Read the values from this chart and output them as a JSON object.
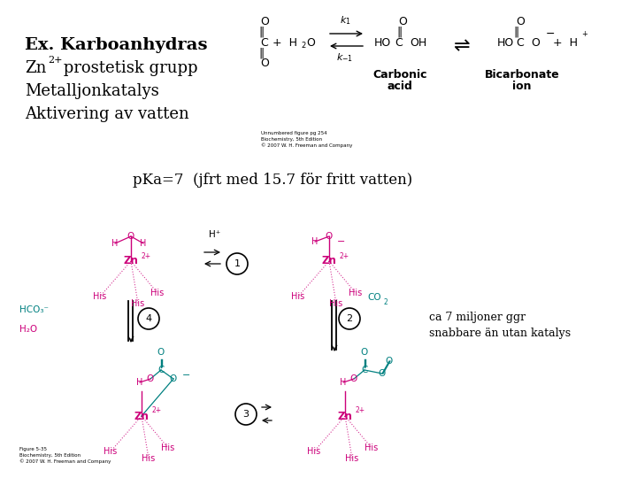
{
  "bg_color": "#ffffff",
  "black": "#000000",
  "magenta": "#cc007a",
  "blue": "#008080",
  "title1": "Ex. Karboanhydras",
  "title2_zn": "Zn",
  "title2_super": "2+",
  "title2_rest": " prostetisk grupp",
  "title3": "Metalljonkatalys",
  "title4": "Aktivering av vatten",
  "pka_text": "pKa=7  (jfrt med 15.7 för fritt vatten)",
  "note_line1": "ca 7 miljoner ggr",
  "note_line2": "snabbare än utan katalys",
  "caption_top": "Unnumbered figure pg 254\nBiochemistry, 5th Edition\n© 2007 W. H. Freeman and Company",
  "caption_bot": "Figure 5-35\nBiochemistry, 5th Edition\n© 2007 W. H. Freeman and Company"
}
